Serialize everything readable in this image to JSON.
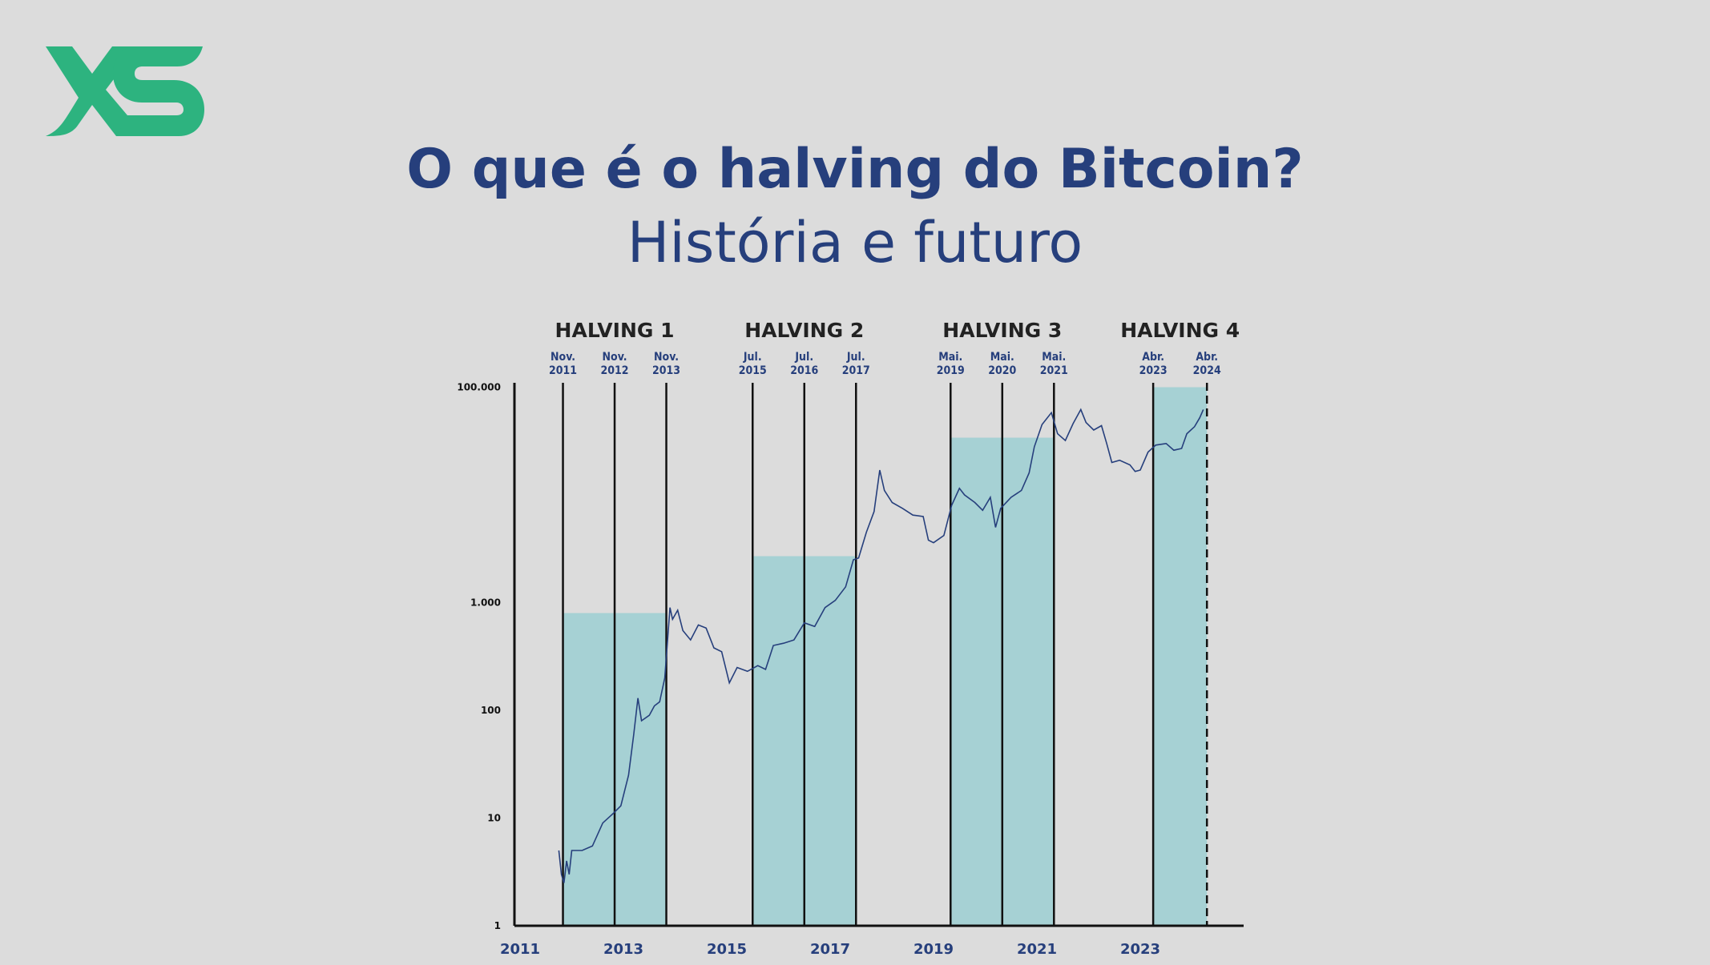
{
  "brand": {
    "logo_text": "XS",
    "color": "#2db37f"
  },
  "header": {
    "title": "O que é o halving do Bitcoin?",
    "subtitle": "História e futuro"
  },
  "chart_data": {
    "type": "line",
    "yscale": "log",
    "ylim": [
      1,
      100000
    ],
    "xlim": [
      2011,
      2024.6
    ],
    "y_ticks": [
      {
        "v": 1,
        "label": "1"
      },
      {
        "v": 10,
        "label": "10"
      },
      {
        "v": 100,
        "label": "100"
      },
      {
        "v": 1000,
        "label": "1.000"
      },
      {
        "v": 100000,
        "label": "100.000"
      }
    ],
    "x_ticks": [
      {
        "v": 2011,
        "label": "2011"
      },
      {
        "v": 2013,
        "label": "2013"
      },
      {
        "v": 2015,
        "label": "2015"
      },
      {
        "v": 2017,
        "label": "2017"
      },
      {
        "v": 2019,
        "label": "2019"
      },
      {
        "v": 2021,
        "label": "2021"
      },
      {
        "v": 2023,
        "label": "2023"
      }
    ],
    "colors": {
      "line": "#263f7c",
      "shade": "#a6d1d4",
      "axis": "#111111"
    },
    "halvings": [
      {
        "label": "HALVING 1",
        "start": 2011.83,
        "end": 2013.83,
        "top": 800,
        "markers": [
          {
            "x": 2011.83,
            "m": "Nov.",
            "y": "2011"
          },
          {
            "x": 2012.83,
            "m": "Nov.",
            "y": "2012"
          },
          {
            "x": 2013.83,
            "m": "Nov.",
            "y": "2013"
          }
        ]
      },
      {
        "label": "HALVING 2",
        "start": 2015.5,
        "end": 2017.5,
        "top": 2700,
        "markers": [
          {
            "x": 2015.5,
            "m": "Jul.",
            "y": "2015"
          },
          {
            "x": 2016.5,
            "m": "Jul.",
            "y": "2016"
          },
          {
            "x": 2017.5,
            "m": "Jul.",
            "y": "2017"
          }
        ]
      },
      {
        "label": "HALVING 3",
        "start": 2019.33,
        "end": 2021.33,
        "top": 34000,
        "markers": [
          {
            "x": 2019.33,
            "m": "Mai.",
            "y": "2019"
          },
          {
            "x": 2020.33,
            "m": "Mai.",
            "y": "2020"
          },
          {
            "x": 2021.33,
            "m": "Mai.",
            "y": "2021"
          }
        ]
      },
      {
        "label": "HALVING 4",
        "start": 2023.25,
        "end": 2024.29,
        "top": 100000,
        "future": true,
        "markers": [
          {
            "x": 2023.25,
            "m": "Abr.",
            "y": "2023"
          },
          {
            "x": 2024.29,
            "m": "Abr.",
            "y": "2024"
          }
        ]
      }
    ],
    "price": [
      [
        2011.75,
        5
      ],
      [
        2011.8,
        3
      ],
      [
        2011.85,
        2.5
      ],
      [
        2011.9,
        4
      ],
      [
        2011.95,
        3
      ],
      [
        2012.0,
        5
      ],
      [
        2012.2,
        5
      ],
      [
        2012.4,
        5.5
      ],
      [
        2012.6,
        9
      ],
      [
        2012.8,
        11
      ],
      [
        2012.95,
        13
      ],
      [
        2013.1,
        25
      ],
      [
        2013.2,
        60
      ],
      [
        2013.28,
        130
      ],
      [
        2013.35,
        80
      ],
      [
        2013.5,
        90
      ],
      [
        2013.6,
        110
      ],
      [
        2013.7,
        120
      ],
      [
        2013.8,
        200
      ],
      [
        2013.9,
        900
      ],
      [
        2013.95,
        700
      ],
      [
        2014.05,
        850
      ],
      [
        2014.15,
        550
      ],
      [
        2014.3,
        450
      ],
      [
        2014.45,
        620
      ],
      [
        2014.6,
        580
      ],
      [
        2014.75,
        380
      ],
      [
        2014.9,
        350
      ],
      [
        2015.05,
        180
      ],
      [
        2015.2,
        250
      ],
      [
        2015.4,
        230
      ],
      [
        2015.6,
        260
      ],
      [
        2015.75,
        240
      ],
      [
        2015.9,
        400
      ],
      [
        2016.1,
        420
      ],
      [
        2016.3,
        450
      ],
      [
        2016.5,
        650
      ],
      [
        2016.7,
        600
      ],
      [
        2016.9,
        900
      ],
      [
        2017.1,
        1050
      ],
      [
        2017.3,
        1400
      ],
      [
        2017.45,
        2500
      ],
      [
        2017.55,
        2600
      ],
      [
        2017.7,
        4500
      ],
      [
        2017.85,
        7000
      ],
      [
        2017.96,
        17000
      ],
      [
        2018.05,
        11000
      ],
      [
        2018.2,
        8500
      ],
      [
        2018.4,
        7500
      ],
      [
        2018.6,
        6500
      ],
      [
        2018.8,
        6300
      ],
      [
        2018.9,
        3800
      ],
      [
        2019.0,
        3600
      ],
      [
        2019.2,
        4200
      ],
      [
        2019.35,
        8000
      ],
      [
        2019.5,
        11500
      ],
      [
        2019.6,
        10000
      ],
      [
        2019.8,
        8500
      ],
      [
        2019.95,
        7200
      ],
      [
        2020.1,
        9500
      ],
      [
        2020.2,
        5000
      ],
      [
        2020.3,
        7500
      ],
      [
        2020.5,
        9500
      ],
      [
        2020.7,
        11000
      ],
      [
        2020.85,
        16000
      ],
      [
        2020.95,
        28000
      ],
      [
        2021.1,
        45000
      ],
      [
        2021.28,
        58000
      ],
      [
        2021.4,
        37000
      ],
      [
        2021.55,
        32000
      ],
      [
        2021.7,
        46000
      ],
      [
        2021.85,
        62000
      ],
      [
        2021.95,
        47000
      ],
      [
        2022.1,
        40000
      ],
      [
        2022.25,
        44000
      ],
      [
        2022.35,
        30000
      ],
      [
        2022.45,
        20000
      ],
      [
        2022.6,
        21000
      ],
      [
        2022.8,
        19000
      ],
      [
        2022.9,
        16500
      ],
      [
        2023.0,
        17000
      ],
      [
        2023.15,
        25000
      ],
      [
        2023.3,
        29000
      ],
      [
        2023.5,
        30000
      ],
      [
        2023.65,
        26000
      ],
      [
        2023.8,
        27000
      ],
      [
        2023.9,
        37000
      ],
      [
        2024.05,
        43000
      ],
      [
        2024.15,
        52000
      ],
      [
        2024.22,
        62000
      ]
    ]
  }
}
